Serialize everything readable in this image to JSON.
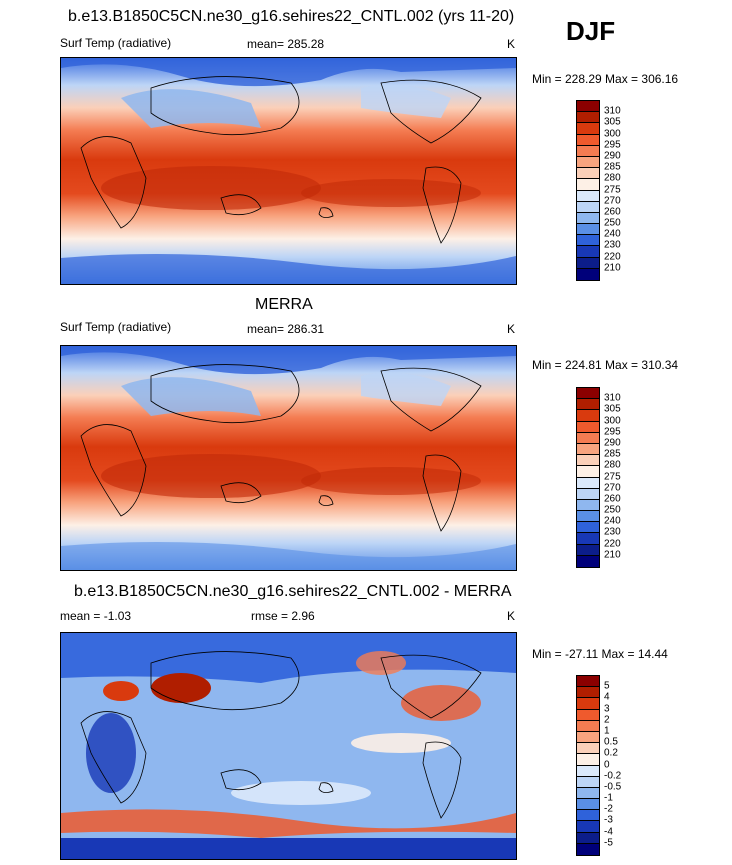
{
  "season": "DJF",
  "panels": [
    {
      "title": "b.e13.B1850C5CN.ne30_g16.sehires22_CNTL.002 (yrs 11-20)",
      "left_label": "Surf Temp (radiative)",
      "mid_label": "mean= 285.28",
      "units": "K",
      "minmax": "Min = 228.29 Max = 306.16"
    },
    {
      "title": "MERRA",
      "left_label": "Surf Temp (radiative)",
      "mid_label": "mean= 286.31",
      "units": "K",
      "minmax": "Min = 224.81 Max = 310.34"
    },
    {
      "title": "b.e13.B1850C5CN.ne30_g16.sehires22_CNTL.002 - MERRA",
      "left_label": "mean =  -1.03",
      "mid_label": "rmse =   2.96",
      "units": "K",
      "minmax": "Min = -27.11 Max =  14.44"
    }
  ],
  "colorbars": {
    "abs_levels": [
      "310",
      "305",
      "300",
      "295",
      "290",
      "285",
      "280",
      "275",
      "270",
      "260",
      "250",
      "240",
      "230",
      "220",
      "210"
    ],
    "abs_colors": [
      "#8b0000",
      "#b01e00",
      "#d93a0e",
      "#ef5a2d",
      "#f47c52",
      "#f8a47f",
      "#fbd0b9",
      "#fdf0e6",
      "#dbe9fb",
      "#bdd5f6",
      "#8fb7ef",
      "#5a8fe6",
      "#2f62da",
      "#1838b6",
      "#0c1d8a",
      "#00007a"
    ],
    "diff_levels": [
      "5",
      "4",
      "3",
      "2",
      "1",
      "0.5",
      "0.2",
      "0",
      "-0.2",
      "-0.5",
      "-1",
      "-2",
      "-3",
      "-4",
      "-5"
    ],
    "diff_colors": [
      "#8b0000",
      "#b01e00",
      "#d93a0e",
      "#ef5a2d",
      "#f47c52",
      "#f8a47f",
      "#fbd0b9",
      "#fdf0e6",
      "#dbe9fb",
      "#bdd5f6",
      "#8fb7ef",
      "#5a8fe6",
      "#2f62da",
      "#1838b6",
      "#0c1d8a",
      "#00007a"
    ]
  }
}
